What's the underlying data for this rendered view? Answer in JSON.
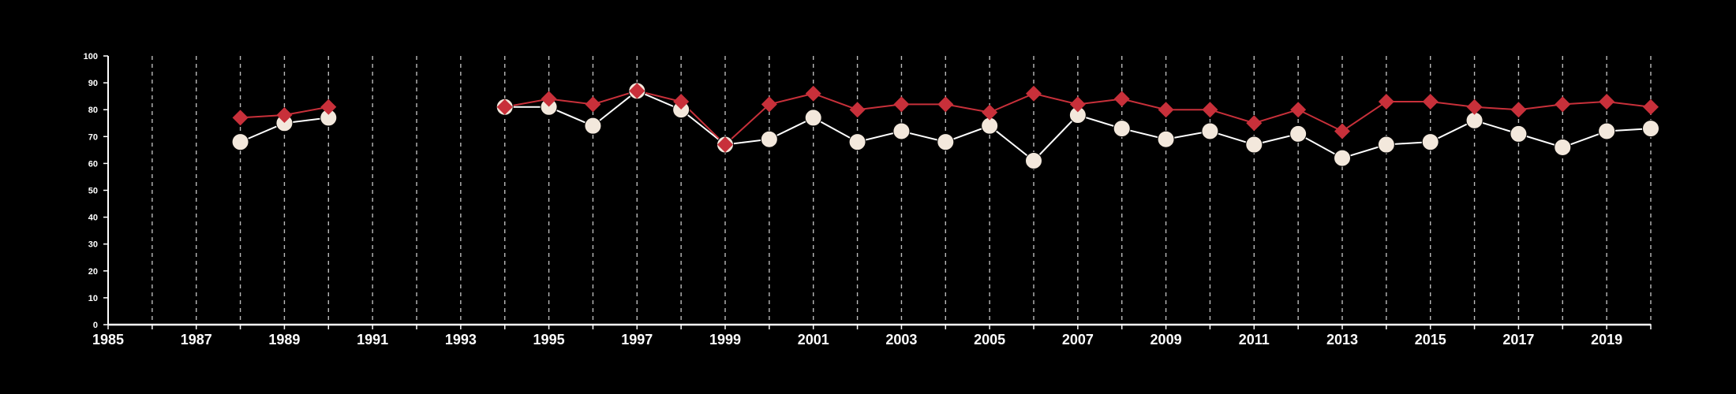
{
  "chart_data": {
    "type": "line",
    "title": "",
    "xlabel": "",
    "ylabel": "",
    "xlim": [
      1985,
      2020
    ],
    "ylim": [
      0,
      100
    ],
    "x_ticks": [
      1985,
      1987,
      1989,
      1991,
      1993,
      1995,
      1997,
      1999,
      2001,
      2003,
      2005,
      2007,
      2009,
      2011,
      2013,
      2015,
      2017,
      2019
    ],
    "x_tick_labels": [
      "1985",
      "1987",
      "1989",
      "1991",
      "1993",
      "1995",
      "1997",
      "1999",
      "2001",
      "2003",
      "2005",
      "2007",
      "2009",
      "2011",
      "2013",
      "2015",
      "2017",
      "2019"
    ],
    "y_ticks": [
      0,
      10,
      20,
      30,
      40,
      50,
      60,
      70,
      80,
      90,
      100
    ],
    "y_tick_labels": [
      "0",
      "10",
      "20",
      "30",
      "40",
      "50",
      "60",
      "70",
      "80",
      "90",
      "100"
    ],
    "grid": "vertical dashed lines at every year",
    "legend": "none",
    "series": [
      {
        "marker": "diamond",
        "color": "#c8303a",
        "points": [
          [
            1988,
            77
          ],
          [
            1989,
            78
          ],
          [
            1990,
            81
          ],
          [
            1994,
            81
          ],
          [
            1995,
            84
          ],
          [
            1996,
            82
          ],
          [
            1997,
            87
          ],
          [
            1998,
            83
          ],
          [
            1999,
            67
          ],
          [
            2000,
            82
          ],
          [
            2001,
            86
          ],
          [
            2002,
            80
          ],
          [
            2003,
            82
          ],
          [
            2004,
            82
          ],
          [
            2005,
            79
          ],
          [
            2006,
            86
          ],
          [
            2007,
            82
          ],
          [
            2008,
            84
          ],
          [
            2009,
            80
          ],
          [
            2010,
            80
          ],
          [
            2011,
            75
          ],
          [
            2012,
            80
          ],
          [
            2013,
            72
          ],
          [
            2014,
            83
          ],
          [
            2015,
            83
          ],
          [
            2016,
            81
          ],
          [
            2017,
            80
          ],
          [
            2018,
            82
          ],
          [
            2019,
            83
          ],
          [
            2020,
            81
          ]
        ]
      },
      {
        "marker": "circle",
        "color": "#f3e8dc",
        "points": [
          [
            1988,
            68
          ],
          [
            1989,
            75
          ],
          [
            1990,
            77
          ],
          [
            1994,
            81
          ],
          [
            1995,
            81
          ],
          [
            1996,
            74
          ],
          [
            1997,
            87
          ],
          [
            1998,
            80
          ],
          [
            1999,
            67
          ],
          [
            2000,
            69
          ],
          [
            2001,
            77
          ],
          [
            2002,
            68
          ],
          [
            2003,
            72
          ],
          [
            2004,
            68
          ],
          [
            2005,
            74
          ],
          [
            2006,
            61
          ],
          [
            2007,
            78
          ],
          [
            2008,
            73
          ],
          [
            2009,
            69
          ],
          [
            2010,
            72
          ],
          [
            2011,
            67
          ],
          [
            2012,
            71
          ],
          [
            2013,
            62
          ],
          [
            2014,
            67
          ],
          [
            2015,
            68
          ],
          [
            2016,
            76
          ],
          [
            2017,
            71
          ],
          [
            2018,
            66
          ],
          [
            2019,
            72
          ],
          [
            2020,
            73
          ]
        ]
      }
    ]
  },
  "colors": {
    "background": "#000000",
    "axis": "#ffffff",
    "grid": "#bbbbbb"
  }
}
